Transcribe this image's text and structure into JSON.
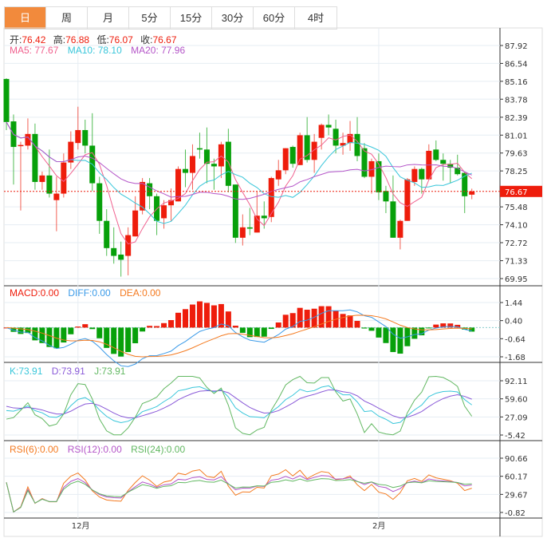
{
  "tabs": [
    "日",
    "周",
    "月",
    "5分",
    "15分",
    "30分",
    "60分",
    "4时"
  ],
  "active_tab": 0,
  "ohlc_header": {
    "open_label": "开:",
    "open": "76.42",
    "high_label": "高:",
    "high": "76.88",
    "low_label": "低:",
    "low": "76.07",
    "close_label": "收:",
    "close": "76.67"
  },
  "ma_legend": {
    "ma5": "MA5: 77.67",
    "ma10": "MA10: 78.10",
    "ma20": "MA20: 77.96"
  },
  "macd_legend": {
    "macd": "MACD:0.00",
    "diff": "DIFF:0.00",
    "dea": "DEA:0.00"
  },
  "kdj_legend": {
    "k": "K:73.91",
    "d": "D:73.91",
    "j": "J:73.91"
  },
  "rsi_legend": {
    "rsi6": "RSI(6):0.00",
    "rsi12": "RSI(12):0.00",
    "rsi24": "RSI(24):0.00"
  },
  "colors": {
    "up": "#ee1d0c",
    "down": "#07a00a",
    "ma5": "#f0608e",
    "ma10": "#38c6da",
    "ma20": "#b455c8",
    "diff": "#3a9ae8",
    "dea": "#f47a20",
    "k": "#38c6da",
    "d": "#8a5ad8",
    "j": "#62b862",
    "rsi6": "#f47a20",
    "rsi12": "#b455c8",
    "rsi24": "#62b862",
    "accent": "#f28a3c"
  },
  "chart_data": {
    "type": "candlestick",
    "last_price": "76.67",
    "price_ticks": [
      "87.92",
      "86.54",
      "85.16",
      "83.78",
      "82.39",
      "81.01",
      "79.63",
      "78.25",
      "75.48",
      "74.10",
      "72.72",
      "71.33",
      "69.95"
    ],
    "macd_ticks": [
      "1.44",
      "0.40",
      "-0.64",
      "-1.68"
    ],
    "kdj_ticks": [
      "92.11",
      "59.60",
      "27.09",
      "-5.42"
    ],
    "rsi_ticks": [
      "90.66",
      "60.17",
      "29.67",
      "-0.82"
    ],
    "x_labels": [
      {
        "index": 10,
        "label": "12月"
      },
      {
        "index": 52,
        "label": "2月"
      }
    ],
    "ohlc": [
      [
        85.34,
        85.4,
        81.4,
        82.02
      ],
      [
        82.07,
        82.6,
        77.2,
        80.1
      ],
      [
        80.2,
        80.5,
        75.2,
        80.25
      ],
      [
        80.2,
        82.3,
        79.9,
        81.1
      ],
      [
        81.1,
        81.9,
        76.8,
        77.4
      ],
      [
        77.4,
        78.2,
        76.8,
        77.9
      ],
      [
        77.9,
        79.9,
        76.2,
        76.5
      ],
      [
        76.0,
        77.8,
        73.6,
        76.5
      ],
      [
        76.5,
        79.6,
        76.2,
        78.9
      ],
      [
        78.9,
        81.3,
        78.4,
        80.5
      ],
      [
        80.4,
        83.2,
        79.9,
        81.4
      ],
      [
        81.4,
        82.2,
        79.6,
        80.2
      ],
      [
        80.2,
        82.7,
        76.7,
        77.3
      ],
      [
        77.3,
        77.8,
        73.4,
        74.4
      ],
      [
        74.4,
        75.3,
        71.7,
        72.3
      ],
      [
        72.3,
        73.9,
        71.1,
        71.7
      ],
      [
        71.8,
        72.8,
        70.1,
        71.4
      ],
      [
        71.7,
        73.9,
        70.2,
        73.3
      ],
      [
        73.2,
        76.3,
        73.2,
        75.2
      ],
      [
        75.2,
        77.7,
        74.9,
        77.4
      ],
      [
        77.3,
        77.7,
        75.3,
        76.3
      ],
      [
        76.3,
        76.5,
        73.3,
        74.4
      ],
      [
        74.6,
        76.0,
        73.8,
        75.6
      ],
      [
        75.6,
        76.9,
        74.4,
        76.0
      ],
      [
        75.9,
        78.6,
        75.9,
        78.4
      ],
      [
        78.4,
        79.9,
        77.0,
        78.1
      ],
      [
        78.1,
        80.3,
        76.8,
        79.4
      ],
      [
        80.0,
        81.2,
        79.2,
        79.9
      ],
      [
        79.9,
        81.6,
        77.3,
        78.8
      ],
      [
        78.8,
        79.2,
        76.8,
        78.6
      ],
      [
        78.6,
        80.5,
        77.7,
        80.3
      ],
      [
        80.5,
        81.5,
        76.6,
        77.1
      ],
      [
        77.2,
        77.2,
        72.7,
        73.1
      ],
      [
        73.1,
        74.9,
        72.5,
        73.9
      ],
      [
        73.9,
        75.4,
        73.3,
        73.8
      ],
      [
        73.5,
        76.7,
        73.5,
        74.8
      ],
      [
        74.8,
        75.9,
        73.8,
        74.6
      ],
      [
        74.7,
        77.8,
        74.3,
        77.7
      ],
      [
        77.6,
        79.1,
        77.1,
        78.3
      ],
      [
        78.3,
        80.0,
        78.0,
        80.0
      ],
      [
        80.1,
        80.2,
        78.5,
        78.8
      ],
      [
        78.7,
        81.2,
        78.7,
        81.0
      ],
      [
        81.0,
        82.4,
        78.9,
        79.1
      ],
      [
        79.1,
        81.1,
        78.1,
        80.5
      ],
      [
        80.8,
        81.9,
        79.9,
        81.8
      ],
      [
        81.8,
        82.6,
        81.0,
        81.6
      ],
      [
        81.5,
        82.2,
        79.6,
        80.2
      ],
      [
        80.2,
        81.2,
        79.5,
        80.4
      ],
      [
        80.4,
        82.1,
        79.8,
        81.1
      ],
      [
        81.1,
        82.4,
        79.0,
        79.4
      ],
      [
        80.0,
        80.4,
        77.7,
        77.8
      ],
      [
        77.8,
        79.2,
        76.5,
        79.0
      ],
      [
        79.0,
        79.6,
        76.0,
        76.6
      ],
      [
        76.7,
        77.1,
        75.0,
        75.9
      ],
      [
        75.9,
        77.9,
        73.1,
        73.1
      ],
      [
        73.1,
        74.5,
        72.2,
        74.4
      ],
      [
        74.4,
        77.7,
        74.4,
        77.6
      ],
      [
        77.4,
        78.6,
        77.1,
        78.4
      ],
      [
        78.4,
        78.5,
        76.5,
        77.6
      ],
      [
        77.6,
        80.3,
        77.6,
        79.8
      ],
      [
        79.9,
        80.6,
        79.0,
        79.1
      ],
      [
        79.1,
        79.6,
        77.5,
        78.8
      ],
      [
        78.8,
        79.1,
        77.3,
        78.5
      ],
      [
        78.5,
        79.5,
        77.9,
        78.0
      ],
      [
        78.1,
        78.2,
        75.0,
        76.3
      ],
      [
        76.42,
        76.88,
        76.07,
        76.67
      ]
    ]
  }
}
